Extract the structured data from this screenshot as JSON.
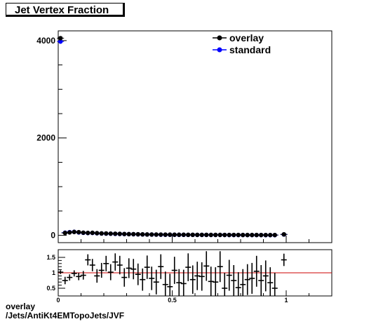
{
  "title": "Jet Vertex Fraction",
  "footer": {
    "line1": "overlay",
    "line2": "/Jets/AntiKt4EMTopoJets/JVF"
  },
  "colors": {
    "overlay": "#000000",
    "standard": "#0000ff",
    "reference_line": "#cc0000"
  },
  "chart_data": [
    {
      "type": "scatter",
      "title": "Jet Vertex Fraction",
      "xlim": [
        0,
        1.2
      ],
      "ylim": [
        -150,
        4200
      ],
      "x_ticks": [
        {
          "value": 0,
          "label": "0"
        },
        {
          "value": 0.5,
          "label": "0.5"
        },
        {
          "value": 1,
          "label": "1"
        }
      ],
      "y_ticks": [
        {
          "value": 0,
          "label": "0"
        },
        {
          "value": 2000,
          "label": "2000"
        },
        {
          "value": 4000,
          "label": "4000"
        }
      ],
      "legend_position": "top-right",
      "series": [
        {
          "name": "overlay",
          "x": [
            0.01,
            0.03,
            0.05,
            0.07,
            0.09,
            0.11,
            0.13,
            0.15,
            0.17,
            0.19,
            0.21,
            0.23,
            0.25,
            0.27,
            0.29,
            0.31,
            0.33,
            0.35,
            0.37,
            0.39,
            0.41,
            0.43,
            0.45,
            0.47,
            0.49,
            0.51,
            0.53,
            0.55,
            0.57,
            0.59,
            0.61,
            0.63,
            0.65,
            0.67,
            0.69,
            0.71,
            0.73,
            0.75,
            0.77,
            0.79,
            0.81,
            0.83,
            0.85,
            0.87,
            0.89,
            0.91,
            0.93,
            0.95,
            0.99
          ],
          "y": [
            4050,
            50,
            60,
            70,
            65,
            55,
            50,
            52,
            45,
            40,
            38,
            35,
            33,
            30,
            28,
            25,
            24,
            22,
            20,
            18,
            17,
            16,
            15,
            14,
            14,
            13,
            12,
            12,
            11,
            11,
            10,
            10,
            10,
            9,
            9,
            9,
            8,
            8,
            8,
            8,
            7,
            7,
            7,
            7,
            6,
            6,
            6,
            6,
            20
          ]
        },
        {
          "name": "standard",
          "x": [
            0.01,
            0.03,
            0.05,
            0.07,
            0.09,
            0.11,
            0.13,
            0.15,
            0.17,
            0.19,
            0.21,
            0.23,
            0.25,
            0.27,
            0.29,
            0.31,
            0.33,
            0.35,
            0.37,
            0.39,
            0.41,
            0.43,
            0.45,
            0.47,
            0.49,
            0.51,
            0.53,
            0.55,
            0.57,
            0.59,
            0.61,
            0.63,
            0.65,
            0.67,
            0.69,
            0.71,
            0.73,
            0.75,
            0.77,
            0.79,
            0.81,
            0.83,
            0.85,
            0.87,
            0.89,
            0.91,
            0.93,
            0.95,
            0.99
          ],
          "y": [
            3980,
            55,
            65,
            72,
            60,
            52,
            48,
            50,
            43,
            38,
            36,
            34,
            31,
            29,
            27,
            24,
            23,
            21,
            19,
            17,
            16,
            15,
            14,
            13,
            13,
            12,
            11,
            11,
            10,
            10,
            9,
            9,
            9,
            8,
            8,
            8,
            8,
            7,
            7,
            7,
            7,
            6,
            6,
            6,
            6,
            5,
            5,
            5,
            18
          ]
        }
      ]
    },
    {
      "type": "scatter",
      "title": "",
      "xlim": [
        0,
        1.2
      ],
      "ylim": [
        0.25,
        1.75
      ],
      "reference_line": 1,
      "x_ticks": [
        {
          "value": 0,
          "label": "0"
        },
        {
          "value": 0.5,
          "label": "0.5"
        },
        {
          "value": 1,
          "label": "1"
        }
      ],
      "y_ticks": [
        {
          "value": 0.5,
          "label": "0.5"
        },
        {
          "value": 1,
          "label": "1"
        },
        {
          "value": 1.5,
          "label": "1.5"
        }
      ],
      "series": [
        {
          "name": "",
          "x": [
            0.01,
            0.03,
            0.05,
            0.07,
            0.09,
            0.11,
            0.13,
            0.15,
            0.17,
            0.19,
            0.21,
            0.23,
            0.25,
            0.27,
            0.29,
            0.31,
            0.33,
            0.35,
            0.37,
            0.39,
            0.41,
            0.43,
            0.45,
            0.47,
            0.49,
            0.51,
            0.53,
            0.55,
            0.57,
            0.59,
            0.61,
            0.63,
            0.65,
            0.67,
            0.69,
            0.71,
            0.73,
            0.75,
            0.77,
            0.79,
            0.81,
            0.83,
            0.85,
            0.87,
            0.89,
            0.91,
            0.93,
            0.95,
            0.99
          ],
          "y": [
            1.02,
            0.75,
            0.85,
            0.98,
            0.88,
            0.92,
            1.42,
            1.25,
            0.9,
            1.08,
            1.3,
            1.02,
            1.35,
            1.25,
            0.85,
            1.15,
            1.12,
            0.95,
            0.78,
            1.18,
            0.82,
            0.7,
            1.2,
            0.62,
            0.55,
            1.08,
            0.68,
            0.65,
            1.18,
            0.78,
            0.9,
            0.88,
            1.22,
            0.72,
            0.7,
            1.2,
            0.5,
            0.92,
            0.75,
            0.52,
            0.62,
            0.78,
            0.82,
            1.05,
            0.75,
            0.9,
            0.68,
            0.5,
            1.42
          ],
          "err": [
            0.06,
            0.12,
            0.1,
            0.1,
            0.12,
            0.14,
            0.18,
            0.2,
            0.22,
            0.24,
            0.25,
            0.26,
            0.28,
            0.3,
            0.3,
            0.32,
            0.33,
            0.35,
            0.36,
            0.38,
            0.38,
            0.4,
            0.4,
            0.42,
            0.42,
            0.44,
            0.44,
            0.45,
            0.45,
            0.46,
            0.46,
            0.46,
            0.48,
            0.48,
            0.48,
            0.5,
            0.5,
            0.5,
            0.5,
            0.5,
            0.5,
            0.5,
            0.5,
            0.5,
            0.5,
            0.5,
            0.5,
            0.5,
            0.2
          ]
        }
      ]
    }
  ]
}
